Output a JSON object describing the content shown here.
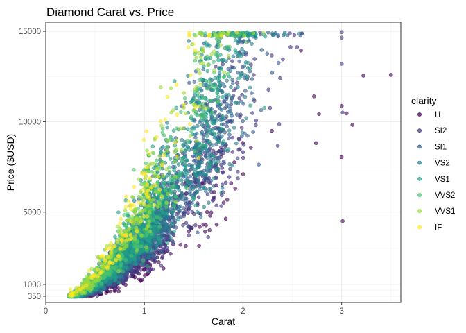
{
  "chart_data": {
    "type": "scatter",
    "title": "Diamond Carat vs. Price",
    "xlabel": "Carat",
    "ylabel": "Price ($USD)",
    "xlim": [
      0,
      3.6
    ],
    "ylim": [
      0,
      15500
    ],
    "x_ticks": [
      0,
      1,
      2,
      3
    ],
    "y_ticks": [
      350,
      1000,
      5000,
      10000,
      15000
    ],
    "x_minor_ticks": [
      0.5,
      1.5,
      2.5,
      3.5
    ],
    "y_minor_ticks": [
      675,
      3000,
      7500,
      12500
    ],
    "grid": true,
    "legend_position": "right",
    "legend_title": "clarity",
    "series": [
      {
        "name": "I1",
        "color": "#440154"
      },
      {
        "name": "SI2",
        "color": "#46337E"
      },
      {
        "name": "SI1",
        "color": "#365C8D"
      },
      {
        "name": "VS2",
        "color": "#277F8E"
      },
      {
        "name": "VS1",
        "color": "#1FA187"
      },
      {
        "name": "VVS2",
        "color": "#4AC16D"
      },
      {
        "name": "VVS1",
        "color": "#9FDA3A"
      },
      {
        "name": "IF",
        "color": "#FDE725"
      }
    ],
    "outliers": [
      {
        "clarity": "I1",
        "x": 3.5,
        "y": 12587
      },
      {
        "clarity": "I1",
        "x": 3.22,
        "y": 12545
      },
      {
        "clarity": "I1",
        "x": 3.11,
        "y": 9823
      },
      {
        "clarity": "I1",
        "x": 3.05,
        "y": 10453
      },
      {
        "clarity": "I1",
        "x": 3.0,
        "y": 8040
      },
      {
        "clarity": "I1",
        "x": 3.0,
        "y": 10863
      },
      {
        "clarity": "I1",
        "x": 3.01,
        "y": 4500
      },
      {
        "clarity": "I1",
        "x": 2.77,
        "y": 10424
      },
      {
        "clarity": "I1",
        "x": 2.74,
        "y": 8807
      },
      {
        "clarity": "I1",
        "x": 2.72,
        "y": 11400
      },
      {
        "clarity": "SI2",
        "x": 3.0,
        "y": 13200
      },
      {
        "clarity": "SI2",
        "x": 3.0,
        "y": 14650
      },
      {
        "clarity": "SI2",
        "x": 3.0,
        "y": 14950
      },
      {
        "clarity": "SI2",
        "x": 3.01,
        "y": 10500
      }
    ]
  }
}
